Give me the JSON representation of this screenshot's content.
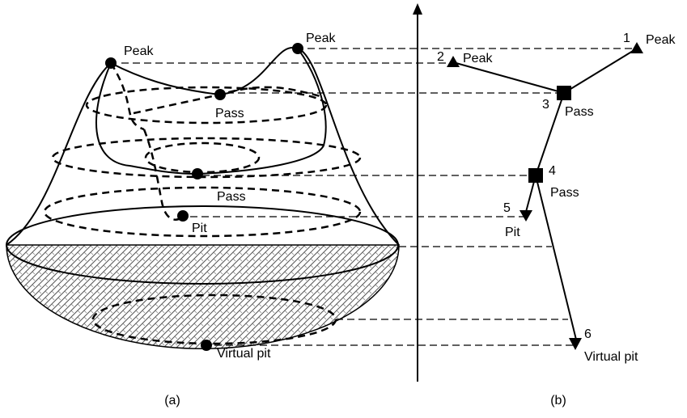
{
  "panel_a": {
    "labels": [
      "Peak",
      "Peak",
      "Pass",
      "Pass",
      "Pit",
      "Virtual pit"
    ],
    "caption": "(a)"
  },
  "panel_b": {
    "nodes": [
      {
        "number": "1",
        "label": "Peak"
      },
      {
        "number": "2",
        "label": "Peak"
      },
      {
        "number": "3",
        "label": "Pass"
      },
      {
        "number": "4",
        "label": "Pass"
      },
      {
        "number": "5",
        "label": "Pit"
      },
      {
        "number": "6",
        "label": "Virtual pit"
      }
    ],
    "caption": "(b)"
  }
}
